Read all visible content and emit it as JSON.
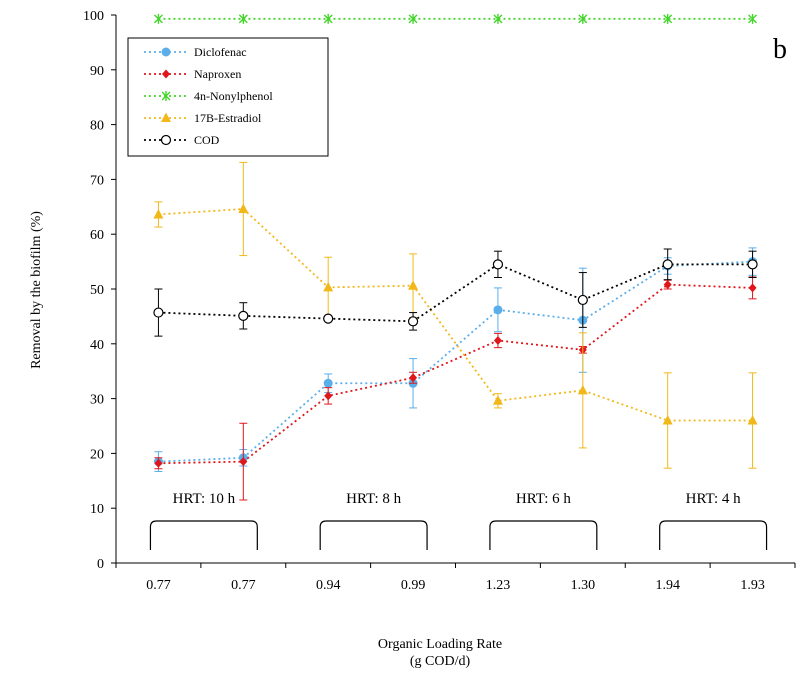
{
  "chart_data": {
    "type": "line",
    "panel_label": "b",
    "xlabel": "Organic Loading Rate",
    "xlabel_sub": "(g COD/d)",
    "ylabel": "Removal by the biofilm  (%)",
    "categories": [
      "0.77",
      "0.77",
      "0.94",
      "0.99",
      "1.23",
      "1.30",
      "1.94",
      "1.93"
    ],
    "ylim": [
      0,
      100
    ],
    "yticks": [
      0,
      10,
      20,
      30,
      40,
      50,
      60,
      70,
      80,
      90,
      100
    ],
    "grid": false,
    "legend_position": "top-left",
    "series": [
      {
        "name": "Diclofenac",
        "color": "#5aaeea",
        "marker": "circle",
        "values": [
          18.5,
          19.2,
          32.8,
          32.8,
          46.2,
          44.3,
          54.2,
          55.0
        ],
        "errors": [
          1.8,
          1.5,
          1.7,
          4.5,
          4.0,
          9.5,
          1.5,
          2.5
        ]
      },
      {
        "name": "Naproxen",
        "color": "#e0161b",
        "marker": "diamond",
        "values": [
          18.2,
          18.5,
          30.5,
          33.8,
          40.6,
          38.9,
          50.8,
          50.2
        ],
        "errors": [
          1.0,
          7.0,
          1.5,
          1.0,
          1.3,
          0.6,
          0.8,
          2.0
        ]
      },
      {
        "name": "4n-Nonylphenol",
        "color": "#44d62c",
        "marker": "star",
        "values": [
          99.3,
          99.3,
          99.3,
          99.3,
          99.3,
          99.3,
          99.3,
          99.3
        ],
        "errors": [
          0,
          0,
          0,
          0,
          0,
          0,
          0,
          0
        ]
      },
      {
        "name": "17B-Estradiol",
        "color": "#f2b81a",
        "marker": "triangle",
        "values": [
          63.6,
          64.6,
          50.3,
          50.6,
          29.6,
          31.5,
          26.0,
          26.0
        ],
        "errors": [
          2.3,
          8.5,
          5.5,
          5.8,
          1.3,
          10.5,
          8.7,
          8.7
        ]
      },
      {
        "name": "COD",
        "color": "#000000",
        "marker": "open-circle",
        "values": [
          45.7,
          45.1,
          44.6,
          44.1,
          54.5,
          48.0,
          54.5,
          54.5
        ],
        "errors": [
          4.3,
          2.4,
          0,
          1.6,
          2.4,
          5.0,
          2.8,
          2.4
        ]
      }
    ],
    "annotations": [
      {
        "text": "HRT: 10 h",
        "span": [
          0,
          1
        ]
      },
      {
        "text": "HRT: 8 h",
        "span": [
          2,
          3
        ]
      },
      {
        "text": "HRT: 6 h",
        "span": [
          4,
          5
        ]
      },
      {
        "text": "HRT: 4 h",
        "span": [
          6,
          7
        ]
      }
    ]
  }
}
